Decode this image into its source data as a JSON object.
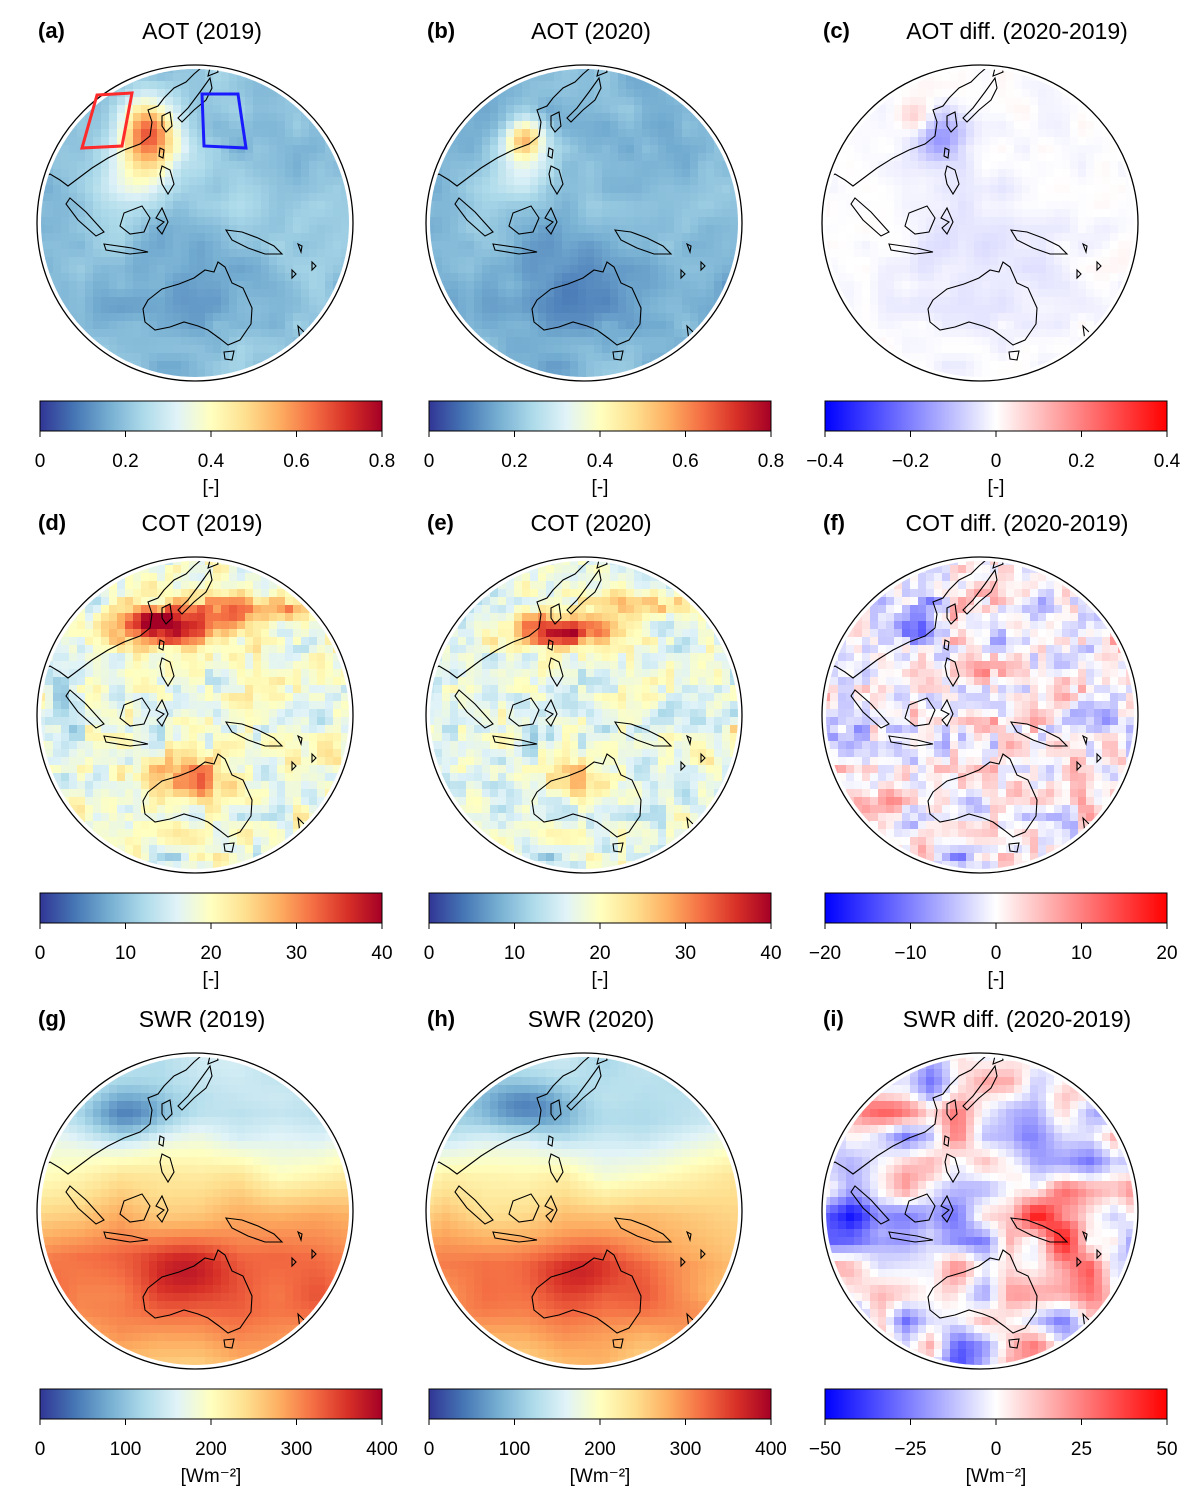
{
  "colors": {
    "seq": [
      "#313695",
      "#4575b4",
      "#74add1",
      "#abd9e9",
      "#e0f3f8",
      "#ffffbf",
      "#fee090",
      "#fdae61",
      "#f46d43",
      "#d73027",
      "#a50026"
    ],
    "div": [
      "#0000ff",
      "#ffffff",
      "#ff0000"
    ],
    "coast": "#000000",
    "box_red": "#ff2a2a",
    "box_blue": "#1a1aff"
  },
  "panels": [
    {
      "label": "(a)",
      "title": "AOT (2019)",
      "cmap": "seq",
      "ticks": [
        "0",
        "0.2",
        "0.4",
        "0.6",
        "0.8"
      ],
      "unit": "[-]",
      "field": "aot",
      "regions": true
    },
    {
      "label": "(b)",
      "title": "AOT (2020)",
      "cmap": "seq",
      "ticks": [
        "0",
        "0.2",
        "0.4",
        "0.6",
        "0.8"
      ],
      "unit": "[-]",
      "field": "aot2"
    },
    {
      "label": "(c)",
      "title": "AOT diff. (2020-2019)",
      "cmap": "div",
      "ticks": [
        "−0.4",
        "−0.2",
        "0",
        "0.2",
        "0.4"
      ],
      "unit": "[-]",
      "field": "aotd"
    },
    {
      "label": "(d)",
      "title": "COT (2019)",
      "cmap": "seq",
      "ticks": [
        "0",
        "10",
        "20",
        "30",
        "40"
      ],
      "unit": "[-]",
      "field": "cot"
    },
    {
      "label": "(e)",
      "title": "COT (2020)",
      "cmap": "seq",
      "ticks": [
        "0",
        "10",
        "20",
        "30",
        "40"
      ],
      "unit": "[-]",
      "field": "cot2"
    },
    {
      "label": "(f)",
      "title": "COT diff. (2020-2019)",
      "cmap": "div",
      "ticks": [
        "−20",
        "−10",
        "0",
        "10",
        "20"
      ],
      "unit": "[-]",
      "field": "cotd"
    },
    {
      "label": "(g)",
      "title": "SWR (2019)",
      "cmap": "seq",
      "ticks": [
        "0",
        "100",
        "200",
        "300",
        "400"
      ],
      "unit": "[Wm⁻²]",
      "field": "swr"
    },
    {
      "label": "(h)",
      "title": "SWR (2020)",
      "cmap": "seq",
      "ticks": [
        "0",
        "100",
        "200",
        "300",
        "400"
      ],
      "unit": "[Wm⁻²]",
      "field": "swr2"
    },
    {
      "label": "(i)",
      "title": "SWR diff. (2020-2019)",
      "cmap": "div",
      "ticks": [
        "−50",
        "−25",
        "0",
        "25",
        "50"
      ],
      "unit": "[Wm⁻²]",
      "field": "swrd"
    }
  ]
}
